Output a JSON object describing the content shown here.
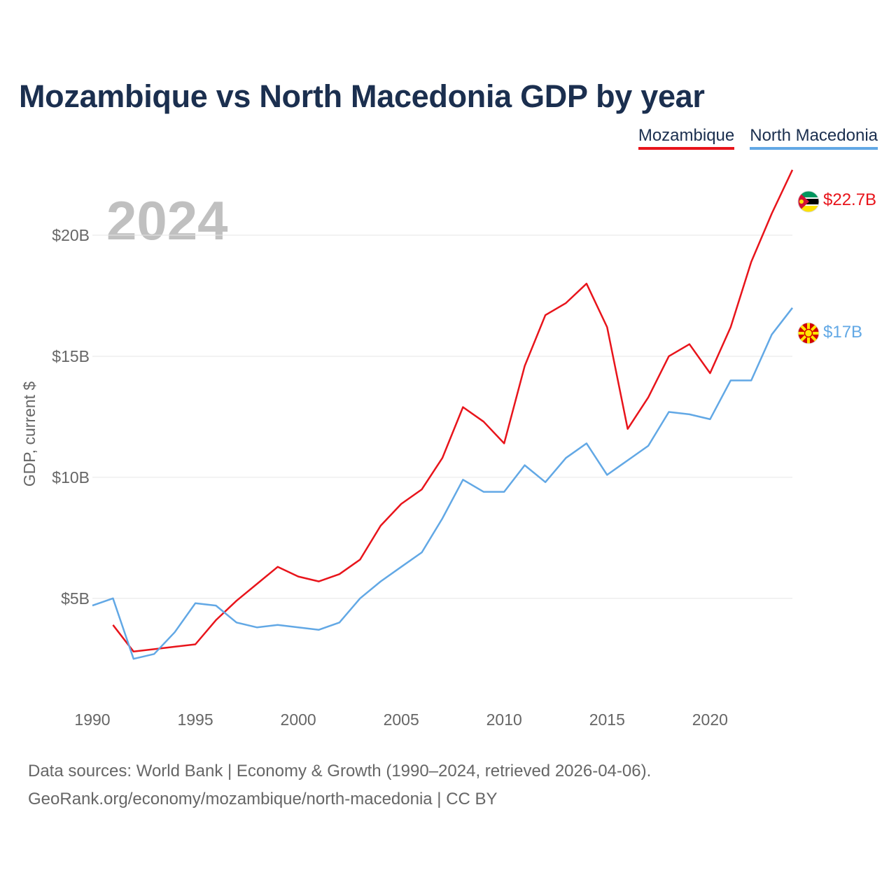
{
  "title": "Mozambique vs North Macedonia GDP by year",
  "year_label": "2024",
  "sources_line1": "Data sources: World Bank | Economy & Growth (1990–2024, retrieved 2026-04-06).",
  "sources_line2": "GeoRank.org/economy/mozambique/north-macedonia | CC BY",
  "chart_data": {
    "type": "line",
    "title": "Mozambique vs North Macedonia GDP by year",
    "ylabel": "GDP, current $",
    "xlabel": "",
    "xlim": [
      1990,
      2024
    ],
    "ylim": [
      0.8,
      23.5
    ],
    "xticks": [
      1990,
      1995,
      2000,
      2005,
      2010,
      2015,
      2020
    ],
    "xtick_labels": [
      "1990",
      "1995",
      "2000",
      "2005",
      "2010",
      "2015",
      "2020"
    ],
    "yticks": [
      5,
      10,
      15,
      20
    ],
    "ytick_labels": [
      "$5B",
      "$10B",
      "$15B",
      "$20B"
    ],
    "legend_position": "top-right",
    "grid": true,
    "series": [
      {
        "name": "Mozambique",
        "color": "#e8141b",
        "end_label": "$22.7B",
        "flag": "mozambique-flag",
        "x": [
          1991,
          1992,
          1993,
          1994,
          1995,
          1996,
          1997,
          1998,
          1999,
          2000,
          2001,
          2002,
          2003,
          2004,
          2005,
          2006,
          2007,
          2008,
          2009,
          2010,
          2011,
          2012,
          2013,
          2014,
          2015,
          2016,
          2017,
          2018,
          2019,
          2020,
          2021,
          2022,
          2023,
          2024
        ],
        "values": [
          3.9,
          2.8,
          2.9,
          3.0,
          3.1,
          4.1,
          4.9,
          5.6,
          6.3,
          5.9,
          5.7,
          6.0,
          6.6,
          8.0,
          8.9,
          9.5,
          10.8,
          12.9,
          12.3,
          11.4,
          14.6,
          16.7,
          17.2,
          18.0,
          16.2,
          12.0,
          13.3,
          15.0,
          15.5,
          14.3,
          16.2,
          18.9,
          20.9,
          22.7
        ]
      },
      {
        "name": "North Macedonia",
        "color": "#62a8e5",
        "end_label": "$17B",
        "flag": "north-macedonia-flag",
        "x": [
          1990,
          1991,
          1992,
          1993,
          1994,
          1995,
          1996,
          1997,
          1998,
          1999,
          2000,
          2001,
          2002,
          2003,
          2004,
          2005,
          2006,
          2007,
          2008,
          2009,
          2010,
          2011,
          2012,
          2013,
          2014,
          2015,
          2016,
          2017,
          2018,
          2019,
          2020,
          2021,
          2022,
          2023,
          2024
        ],
        "values": [
          4.7,
          5.0,
          2.5,
          2.7,
          3.6,
          4.8,
          4.7,
          4.0,
          3.8,
          3.9,
          3.8,
          3.7,
          4.0,
          5.0,
          5.7,
          6.3,
          6.9,
          8.3,
          9.9,
          9.4,
          9.4,
          10.5,
          9.8,
          10.8,
          11.4,
          10.1,
          10.7,
          11.3,
          12.7,
          12.6,
          12.4,
          14.0,
          14.0,
          15.9,
          17.0
        ]
      }
    ]
  }
}
